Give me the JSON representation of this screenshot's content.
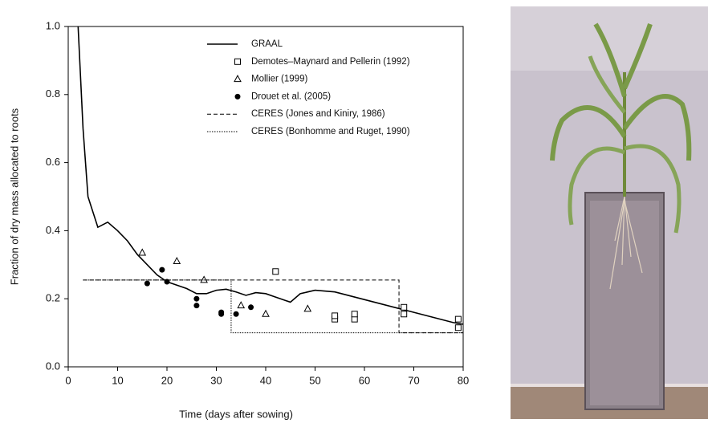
{
  "chart_data": {
    "type": "line",
    "xlabel": "Time (days after sowing)",
    "ylabel": "Fraction of dry mass allocated to roots",
    "xlim": [
      0,
      80
    ],
    "ylim": [
      0,
      1
    ],
    "xticks": [
      0,
      10,
      20,
      30,
      40,
      50,
      60,
      70,
      80
    ],
    "yticks": [
      {
        "value": 0,
        "label": "0.0"
      },
      0.2,
      0.4,
      0.6,
      0.8,
      {
        "value": 1,
        "label": "1.0"
      }
    ],
    "series": [
      {
        "name": "GRAAL",
        "style": "solid",
        "color": "#000000",
        "x": [
          2,
          3,
          4,
          6,
          8,
          10,
          12,
          14,
          16,
          18,
          20,
          22,
          24,
          26,
          28,
          30,
          32,
          34,
          36,
          38,
          40,
          42,
          44,
          45,
          47,
          50,
          54,
          58,
          62,
          66,
          70,
          74,
          78,
          80
        ],
        "values": [
          1.0,
          0.7,
          0.5,
          0.41,
          0.425,
          0.4,
          0.37,
          0.33,
          0.3,
          0.27,
          0.25,
          0.24,
          0.23,
          0.215,
          0.215,
          0.225,
          0.228,
          0.22,
          0.21,
          0.218,
          0.215,
          0.205,
          0.195,
          0.19,
          0.215,
          0.225,
          0.22,
          0.205,
          0.19,
          0.175,
          0.16,
          0.145,
          0.13,
          0.125
        ]
      },
      {
        "name": "Demotes–Maynard and Pellerin (1992)",
        "style": "square",
        "color": "#000000",
        "x": [
          42,
          54,
          54,
          58,
          58,
          68,
          68,
          79,
          79
        ],
        "values": [
          0.28,
          0.14,
          0.15,
          0.14,
          0.155,
          0.155,
          0.175,
          0.14,
          0.115
        ]
      },
      {
        "name": "Mollier (1999)",
        "style": "triangle",
        "color": "#000000",
        "x": [
          15,
          22,
          27.5,
          35,
          40,
          48.5
        ],
        "values": [
          0.335,
          0.31,
          0.255,
          0.18,
          0.155,
          0.17
        ]
      },
      {
        "name": "Drouet et al. (2005)",
        "style": "circle",
        "color": "#000000",
        "x": [
          16,
          19,
          20,
          26,
          26,
          31,
          31,
          34,
          37
        ],
        "values": [
          0.245,
          0.285,
          0.25,
          0.2,
          0.18,
          0.16,
          0.155,
          0.155,
          0.175
        ]
      },
      {
        "name": "CERES (Jones and Kiniry, 1986)",
        "style": "dashed",
        "color": "#000000",
        "x": [
          3,
          67,
          67,
          80
        ],
        "values": [
          0.255,
          0.255,
          0.1,
          0.1
        ]
      },
      {
        "name": "CERES (Bonhomme and Ruget, 1990)",
        "style": "dotted",
        "color": "#000000",
        "x": [
          3,
          33,
          33,
          80
        ],
        "values": [
          0.255,
          0.255,
          0.1,
          0.1
        ]
      }
    ]
  }
}
